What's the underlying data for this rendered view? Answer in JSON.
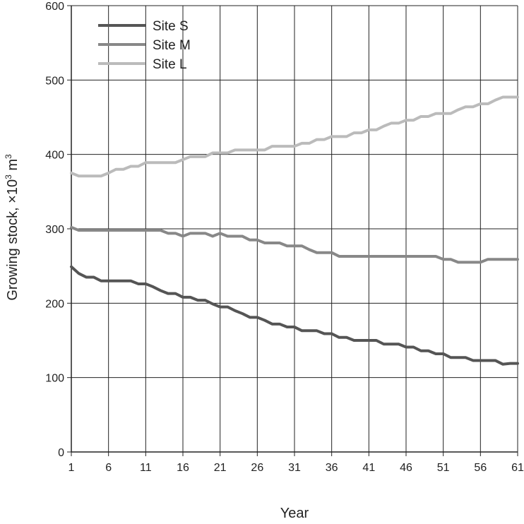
{
  "chart_data": {
    "type": "line",
    "title": "",
    "xlabel": "Year",
    "ylabel": "Growing stock, ×10³ m³",
    "ylabel_main": "Growing stock, ×10",
    "ylabel_sup1": "3",
    "ylabel_mid": " m",
    "ylabel_sup2": "3",
    "xlim": [
      1,
      61
    ],
    "ylim": [
      0,
      600
    ],
    "x_ticks": [
      1,
      6,
      11,
      16,
      21,
      26,
      31,
      36,
      41,
      46,
      51,
      56,
      61
    ],
    "y_ticks": [
      0,
      100,
      200,
      300,
      400,
      500,
      600
    ],
    "grid": true,
    "legend_position": "top-left",
    "x": [
      1,
      2,
      3,
      4,
      5,
      6,
      7,
      8,
      9,
      10,
      11,
      12,
      13,
      14,
      15,
      16,
      17,
      18,
      19,
      20,
      21,
      22,
      23,
      24,
      25,
      26,
      27,
      28,
      29,
      30,
      31,
      32,
      33,
      34,
      35,
      36,
      37,
      38,
      39,
      40,
      41,
      42,
      43,
      44,
      45,
      46,
      47,
      48,
      49,
      50,
      51,
      52,
      53,
      54,
      55,
      56,
      57,
      58,
      59,
      60,
      61
    ],
    "series": [
      {
        "name": "Site S",
        "color": "#555555",
        "values": [
          249,
          240,
          235,
          235,
          230,
          230,
          230,
          230,
          230,
          226,
          226,
          222,
          217,
          213,
          213,
          208,
          208,
          204,
          204,
          199,
          195,
          195,
          190,
          186,
          181,
          181,
          177,
          172,
          172,
          168,
          168,
          163,
          163,
          163,
          159,
          159,
          154,
          154,
          150,
          150,
          150,
          150,
          145,
          145,
          145,
          141,
          141,
          136,
          136,
          132,
          132,
          127,
          127,
          127,
          123,
          123,
          123,
          123,
          118,
          119,
          119
        ]
      },
      {
        "name": "Site M",
        "color": "#888888",
        "values": [
          302,
          298,
          298,
          298,
          298,
          298,
          298,
          298,
          298,
          298,
          298,
          298,
          298,
          294,
          294,
          290,
          294,
          294,
          294,
          290,
          294,
          290,
          290,
          290,
          285,
          285,
          281,
          281,
          281,
          277,
          277,
          277,
          272,
          268,
          268,
          268,
          263,
          263,
          263,
          263,
          263,
          263,
          263,
          263,
          263,
          263,
          263,
          263,
          263,
          263,
          259,
          259,
          255,
          255,
          255,
          255,
          259,
          259,
          259,
          259,
          259
        ]
      },
      {
        "name": "Site L",
        "color": "#bbbbbb",
        "values": [
          375,
          371,
          371,
          371,
          371,
          375,
          380,
          380,
          384,
          384,
          389,
          389,
          389,
          389,
          389,
          393,
          397,
          397,
          397,
          402,
          402,
          402,
          406,
          406,
          406,
          406,
          406,
          411,
          411,
          411,
          411,
          415,
          415,
          420,
          420,
          424,
          424,
          424,
          429,
          429,
          433,
          433,
          438,
          442,
          442,
          446,
          446,
          451,
          451,
          455,
          455,
          455,
          460,
          464,
          464,
          468,
          468,
          473,
          477,
          477,
          477
        ]
      }
    ]
  }
}
